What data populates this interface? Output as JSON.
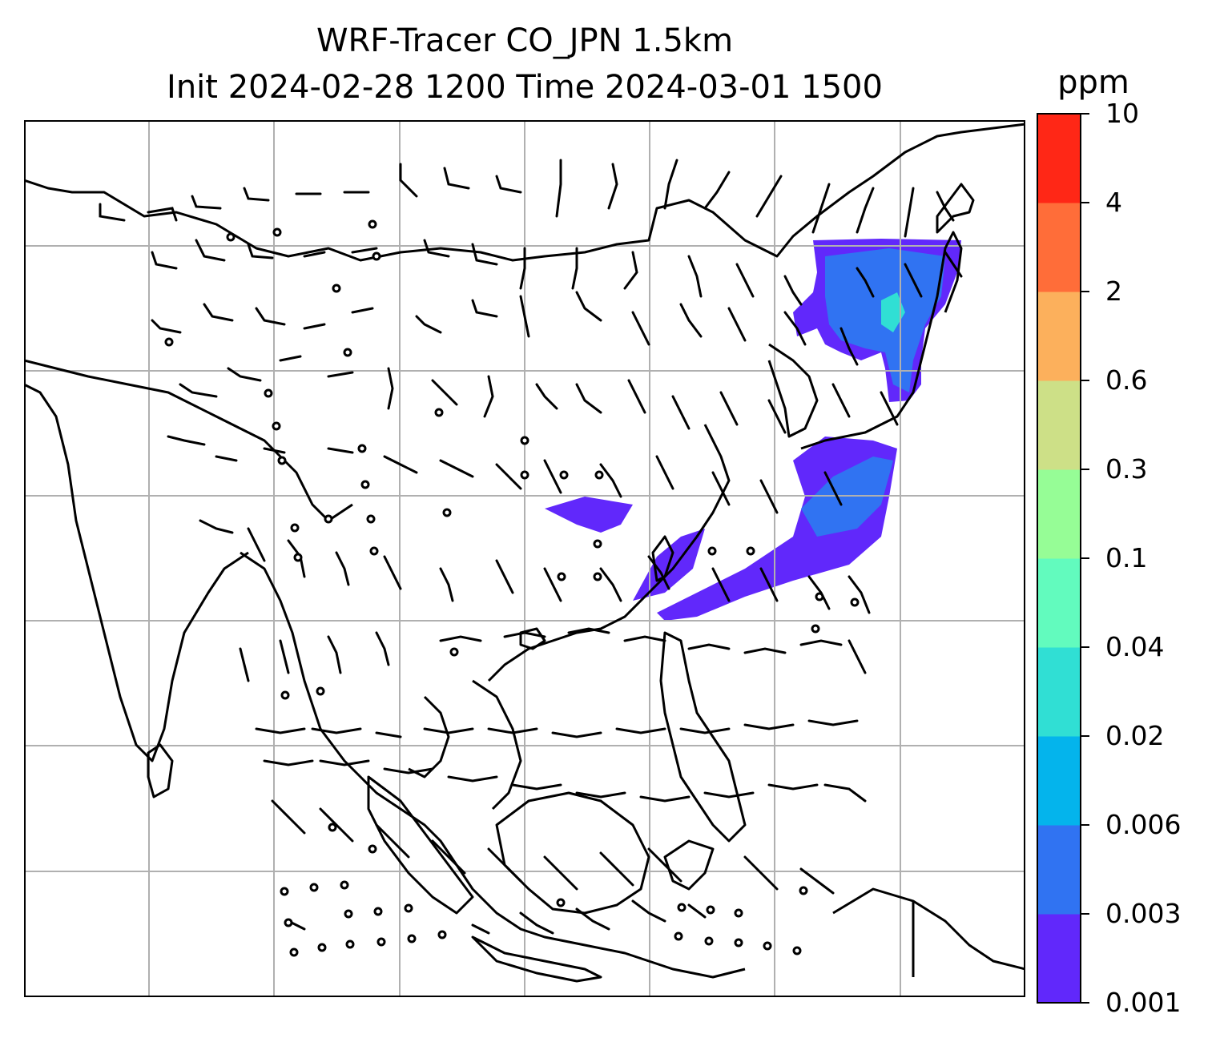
{
  "title_line1": "WRF-Tracer CO_JPN 1.5km",
  "title_line2": "Init 2024-02-28 1200 Time 2024-03-01 1500",
  "colorbar": {
    "unit": "ppm",
    "levels": [
      "0.001",
      "0.003",
      "0.006",
      "0.02",
      "0.04",
      "0.1",
      "0.3",
      "0.6",
      "2",
      "4",
      "10"
    ],
    "colors": [
      "#6128fb",
      "#3073f2",
      "#04b4ec",
      "#30dfd4",
      "#62fbbe",
      "#96fd96",
      "#cde087",
      "#fcb05c",
      "#ff6d39",
      "#ff2716"
    ]
  },
  "map": {
    "gridlines": true,
    "tracer_color_primary": "#6128fb",
    "tracer_color_secondary": "#3073f2",
    "tracer_color_core": "#30dfd4",
    "coastline_color": "#000000"
  }
}
